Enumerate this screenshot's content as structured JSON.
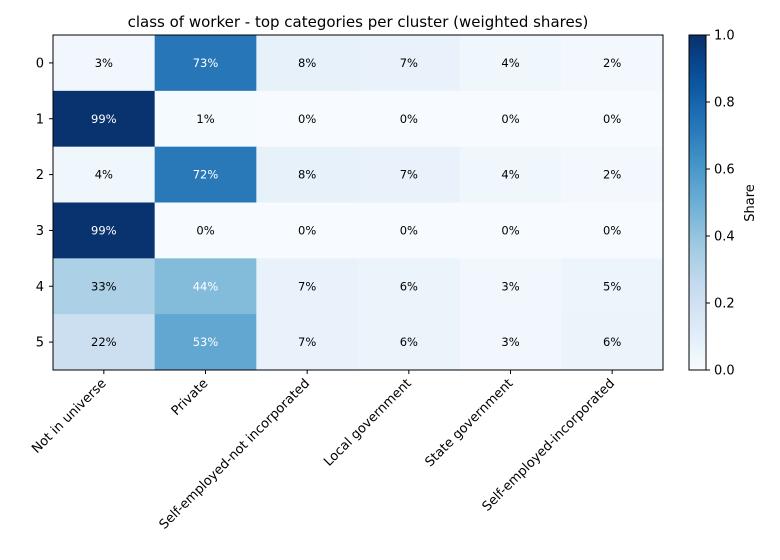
{
  "chart_data": {
    "type": "heatmap",
    "title": "class of worker - top categories per cluster (weighted shares)",
    "xlabel": "",
    "ylabel": "",
    "x_categories": [
      "Not in universe",
      "Private",
      "Self-employed-not incorporated",
      "Local government",
      "State government",
      "Self-employed-incorporated"
    ],
    "y_categories": [
      "0",
      "1",
      "2",
      "3",
      "4",
      "5"
    ],
    "values": [
      [
        0.03,
        0.73,
        0.08,
        0.07,
        0.04,
        0.02
      ],
      [
        0.99,
        0.01,
        0.0,
        0.0,
        0.0,
        0.0
      ],
      [
        0.04,
        0.72,
        0.08,
        0.07,
        0.04,
        0.02
      ],
      [
        0.99,
        0.0,
        0.0,
        0.0,
        0.0,
        0.0
      ],
      [
        0.33,
        0.44,
        0.07,
        0.06,
        0.03,
        0.05
      ],
      [
        0.22,
        0.53,
        0.07,
        0.06,
        0.03,
        0.06
      ]
    ],
    "cell_labels": [
      [
        "3%",
        "73%",
        "8%",
        "7%",
        "4%",
        "2%"
      ],
      [
        "99%",
        "1%",
        "0%",
        "0%",
        "0%",
        "0%"
      ],
      [
        "4%",
        "72%",
        "8%",
        "7%",
        "4%",
        "2%"
      ],
      [
        "99%",
        "0%",
        "0%",
        "0%",
        "0%",
        "0%"
      ],
      [
        "33%",
        "44%",
        "7%",
        "6%",
        "3%",
        "5%"
      ],
      [
        "22%",
        "53%",
        "7%",
        "6%",
        "3%",
        "6%"
      ]
    ],
    "colormap": "Blues",
    "colorbar": {
      "label": "Share",
      "range": [
        0,
        1
      ],
      "ticks": [
        0.0,
        0.2,
        0.4,
        0.6,
        0.8,
        1.0
      ],
      "tick_labels": [
        "0.0",
        "0.2",
        "0.4",
        "0.6",
        "0.8",
        "1.0"
      ]
    },
    "grid": false,
    "colors": {
      "dark_text": "#000000",
      "light_text": "#ffffff"
    }
  }
}
